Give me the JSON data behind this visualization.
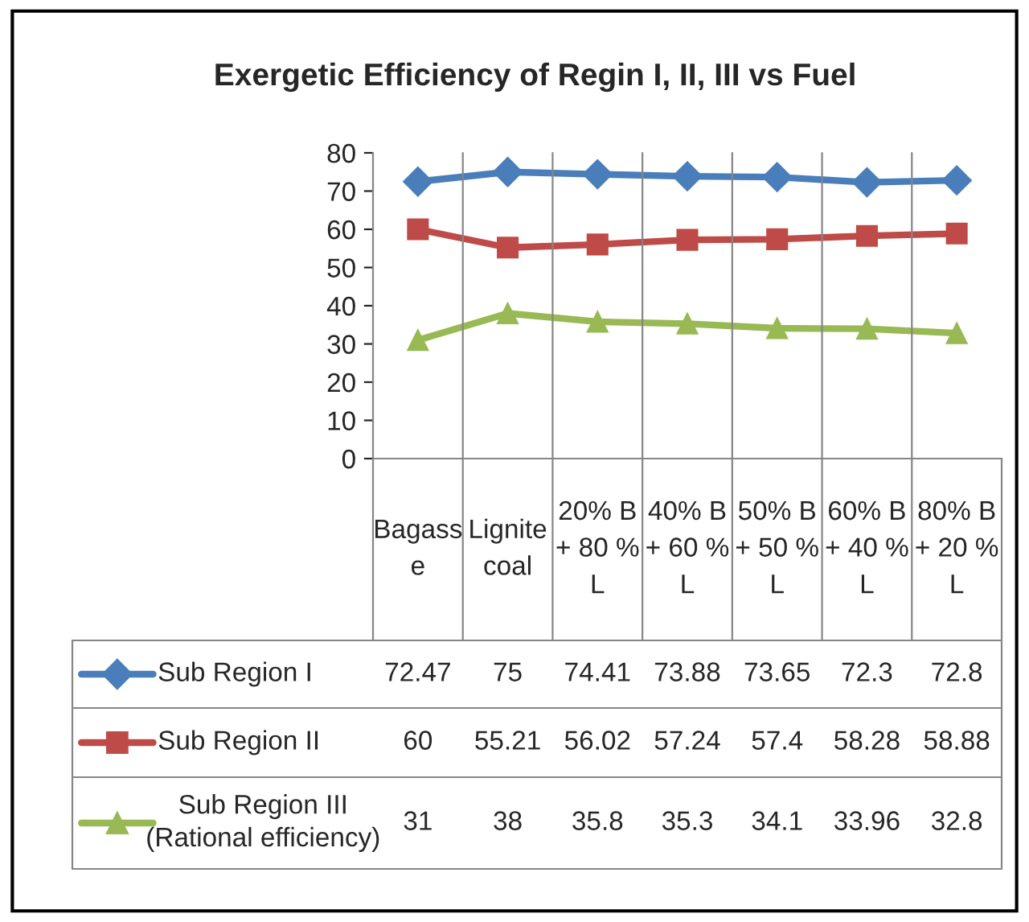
{
  "chart_data": {
    "type": "line",
    "title": "Exergetic Efficiency of Regin I, II, III vs Fuel",
    "categories": [
      "Bagass\ne",
      "Lignite\ncoal",
      "20% B\n+ 80 %\nL",
      "40% B\n+ 60 %\nL",
      "50% B\n+ 50 %\nL",
      "60% B\n+ 40 %\nL",
      "80% B\n+ 20 %\nL"
    ],
    "series": [
      {
        "name": "Sub Region I",
        "color": "#4a7ebb",
        "marker": "diamond",
        "values": [
          72.47,
          75,
          74.41,
          73.88,
          73.65,
          72.3,
          72.8
        ]
      },
      {
        "name": "Sub Region II",
        "color": "#be4b48",
        "marker": "square",
        "values": [
          60,
          55.21,
          56.02,
          57.24,
          57.4,
          58.28,
          58.88
        ]
      },
      {
        "name": "Sub Region III\n(Rational efficiency)",
        "color": "#98b954",
        "marker": "triangle",
        "values": [
          31,
          38,
          35.8,
          35.3,
          34.1,
          33.96,
          32.8
        ]
      }
    ],
    "ylim": [
      0,
      80
    ],
    "yticks": [
      0,
      10,
      20,
      30,
      40,
      50,
      60,
      70,
      80
    ],
    "data_labels": true,
    "grid": false,
    "legend": "left",
    "line_style": "solid"
  }
}
